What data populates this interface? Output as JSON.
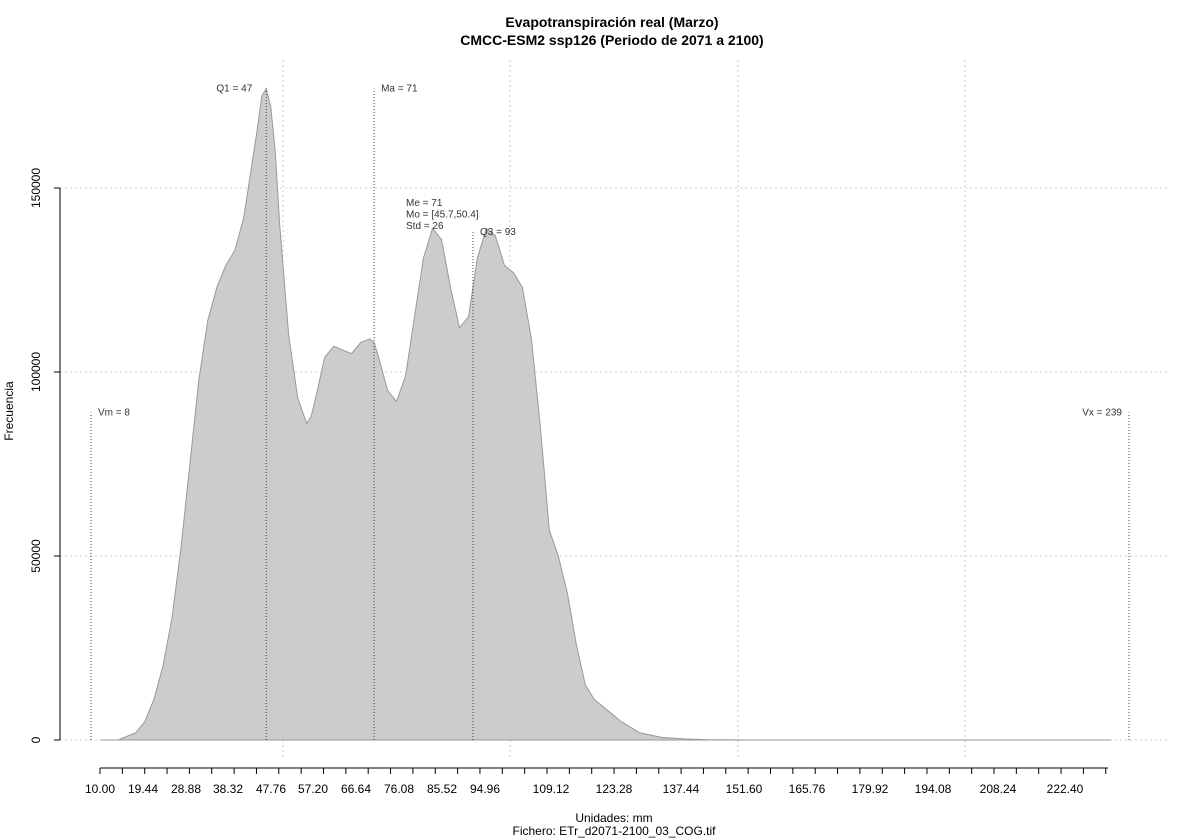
{
  "chart_data": {
    "type": "area",
    "title": "Evapotranspiración real (Marzo)",
    "subtitle": "CMCC-ESM2 ssp126 (Periodo de 2071 a 2100)",
    "xlabel": "Unidades: mm",
    "footer": "Fichero: ETr_d2071-2100_03_COG.tif",
    "ylabel": "Frecuencia",
    "xlim": [
      10,
      239
    ],
    "ylim": [
      0,
      180000
    ],
    "grid": true,
    "x_tick_labels": [
      "10.00",
      "19.44",
      "28.88",
      "38.32",
      "47.76",
      "57.20",
      "66.64",
      "76.08",
      "85.52",
      "94.96",
      "109.12",
      "123.28",
      "137.44",
      "151.60",
      "165.76",
      "179.92",
      "194.08",
      "208.24",
      "222.40"
    ],
    "y_ticks": [
      0,
      50000,
      100000,
      150000
    ],
    "y_tick_labels": [
      "0",
      "50000",
      "100000",
      "150000"
    ],
    "fill_color": "#cccccc",
    "line_color": "#999999",
    "series": [
      {
        "x": [
          10,
          14,
          18,
          20,
          22,
          24,
          26,
          28,
          30,
          32,
          34,
          36,
          38,
          40,
          42,
          44,
          45,
          46,
          47,
          48,
          49,
          50,
          52,
          54,
          56,
          57,
          58,
          60,
          62,
          64,
          66,
          68,
          70,
          71,
          72,
          74,
          76,
          78,
          80,
          82,
          84,
          86,
          88,
          90,
          92,
          94,
          96,
          98,
          100,
          102,
          104,
          106,
          108,
          110,
          112,
          114,
          116,
          118,
          120,
          122,
          124,
          126,
          130,
          135,
          140,
          145,
          150,
          154,
          160,
          180,
          200,
          220,
          235
        ],
        "y": [
          0,
          0,
          2000,
          5000,
          11000,
          20000,
          33000,
          52000,
          75000,
          98000,
          114000,
          123000,
          129000,
          133000,
          142000,
          158000,
          166000,
          175000,
          177000,
          172000,
          160000,
          140000,
          110000,
          93000,
          86000,
          88000,
          93000,
          104000,
          107000,
          106000,
          105000,
          108000,
          109000,
          108000,
          104000,
          95000,
          92000,
          99000,
          115000,
          131000,
          139000,
          136000,
          123000,
          112000,
          115000,
          131000,
          139000,
          137000,
          129000,
          127000,
          123000,
          109000,
          85000,
          57000,
          50000,
          40000,
          26000,
          15000,
          11000,
          9000,
          7000,
          5000,
          2000,
          700,
          300,
          100,
          50,
          0,
          0,
          0,
          0,
          0,
          0
        ]
      }
    ],
    "vlines": [
      {
        "label": "Vm = 8",
        "x": 8,
        "height": 89000,
        "label_y": 89000
      },
      {
        "label": "Q1 = 47",
        "x": 47,
        "height": 177000,
        "label_y": 177000
      },
      {
        "label": "Ma = 71",
        "x": 71,
        "height": 177000,
        "label_y": 177000
      },
      {
        "label": "Q3 = 93",
        "x": 93,
        "height": 138000,
        "label_y": 138000
      },
      {
        "label": "Vx = 239",
        "x": 239,
        "height": 89000,
        "label_y": 89000
      }
    ],
    "stats_block": [
      "Me = 71",
      "Mo = [45.7,50.4]",
      "Std = 26"
    ]
  }
}
